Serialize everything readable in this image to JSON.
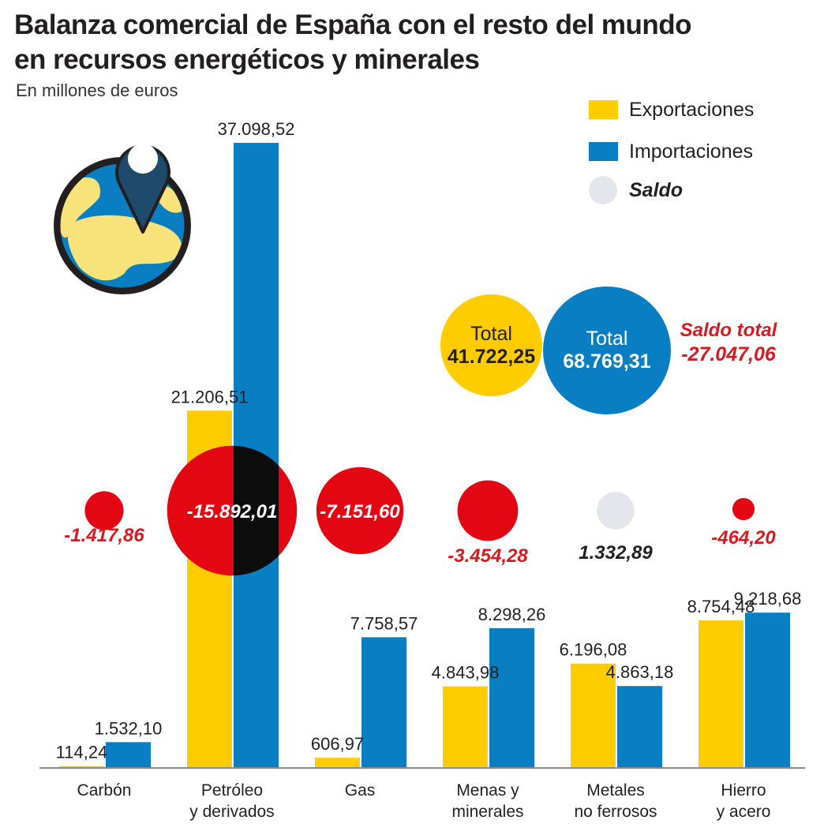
{
  "header": {
    "title_line1": "Balanza comercial de España con el resto del mundo",
    "title_line2": "en recursos energéticos y minerales",
    "subtitle": "En millones de euros"
  },
  "legend": {
    "exports": "Exportaciones",
    "imports": "Importaciones",
    "saldo": "Saldo"
  },
  "totals": {
    "export_label": "Total",
    "export_value": "41.722,25",
    "import_label": "Total",
    "import_value": "68.769,31",
    "saldo_label": "Saldo total",
    "saldo_value": "-27.047,06"
  },
  "colors": {
    "exports": "#ffcc00",
    "imports": "#0a7ec2",
    "saldo_negative": "#e30613",
    "saldo_positive": "#e3e6eb",
    "negative_text": "#d71920",
    "overlap": "#0d0d0d"
  },
  "chart_data": {
    "type": "bar",
    "title": "Balanza comercial de España con el resto del mundo en recursos energéticos y minerales",
    "subtitle": "En millones de euros",
    "categories": [
      [
        "Carbón"
      ],
      [
        "Petróleo",
        "y derivados"
      ],
      [
        "Gas"
      ],
      [
        "Menas y",
        "minerales"
      ],
      [
        "Metales",
        "no ferrosos"
      ],
      [
        "Hierro",
        "y acero"
      ]
    ],
    "series": [
      {
        "name": "Exportaciones",
        "values": [
          114.24,
          21206.51,
          606.97,
          4843.98,
          6196.08,
          8754.48
        ],
        "labels": [
          "114,24",
          "21.206,51",
          "606,97",
          "4.843,98",
          "6.196,08",
          "8.754,48"
        ]
      },
      {
        "name": "Importaciones",
        "values": [
          1532.1,
          37098.52,
          7758.57,
          8298.26,
          4863.18,
          9218.68
        ],
        "labels": [
          "1.532,10",
          "37.098,52",
          "7.758,57",
          "8.298,26",
          "4.863,18",
          "9.218,68"
        ]
      }
    ],
    "saldo": {
      "name": "Saldo",
      "values": [
        -1417.86,
        -15892.01,
        -7151.6,
        -3454.28,
        1332.89,
        -464.2
      ],
      "labels": [
        "-1.417,86",
        "-15.892,01",
        "-7.151,60",
        "-3.454,28",
        "1.332,89",
        "-464,20"
      ]
    },
    "legend_position": "top-right",
    "grid": false
  }
}
